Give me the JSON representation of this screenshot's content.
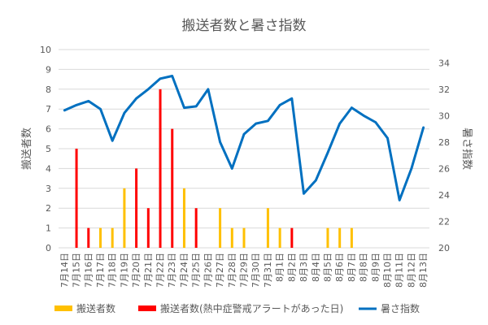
{
  "chart_data": {
    "type": "bar+line",
    "title": "搬送者数と暑さ指数",
    "ylabel_left": "搬送者数",
    "ylabel_right": "暑さ指数",
    "y_left_lim": [
      0,
      10
    ],
    "y_left_ticks": [
      "0",
      "1",
      "2",
      "3",
      "4",
      "5",
      "6",
      "7",
      "8",
      "9",
      "10"
    ],
    "y_right_lim": [
      20,
      35
    ],
    "y_right_ticks": [
      "20",
      "22",
      "24",
      "26",
      "28",
      "30",
      "32",
      "34"
    ],
    "grid": "horizontal",
    "legend_position": "bottom",
    "categories": [
      "7月14日",
      "7月15日",
      "7月16日",
      "7月17日",
      "7月18日",
      "7月19日",
      "7月20日",
      "7月21日",
      "7月22日",
      "7月23日",
      "7月24日",
      "7月25日",
      "7月26日",
      "7月27日",
      "7月28日",
      "7月29日",
      "7月30日",
      "7月31日",
      "8月1日",
      "8月2日",
      "8月3日",
      "8月4日",
      "8月5日",
      "8月6日",
      "8月7日",
      "8月8日",
      "8月9日",
      "8月10日",
      "8月11日",
      "8月12日",
      "8月13日"
    ],
    "series": [
      {
        "name": "搬送者数",
        "type": "bar",
        "axis": "left",
        "color": "#FFC000",
        "values": [
          0,
          0,
          0,
          1,
          1,
          3,
          0,
          0,
          0,
          0,
          3,
          0,
          0,
          2,
          1,
          1,
          0,
          2,
          1,
          0,
          0,
          0,
          1,
          1,
          1,
          0,
          0,
          0,
          0,
          0,
          0
        ]
      },
      {
        "name": "搬送者数(熱中症警戒アラートがあった日)",
        "type": "bar",
        "axis": "left",
        "color": "#FF0000",
        "values": [
          0,
          5,
          1,
          0,
          0,
          0,
          4,
          2,
          8,
          6,
          0,
          2,
          0,
          0,
          0,
          0,
          0,
          0,
          0,
          1,
          0,
          0,
          0,
          0,
          0,
          0,
          0,
          0,
          0,
          0,
          0
        ]
      },
      {
        "name": "暑さ指数",
        "type": "line",
        "axis": "right",
        "color": "#0070C0",
        "values": [
          30.4,
          30.8,
          31.1,
          30.5,
          28.1,
          30.2,
          31.3,
          32.0,
          32.8,
          33.0,
          30.6,
          30.7,
          32.0,
          28.0,
          26.0,
          28.6,
          29.4,
          29.6,
          30.8,
          31.3,
          24.1,
          25.1,
          27.2,
          29.4,
          30.6,
          30.0,
          29.5,
          28.3,
          23.6,
          26.0,
          29.1
        ]
      }
    ]
  }
}
